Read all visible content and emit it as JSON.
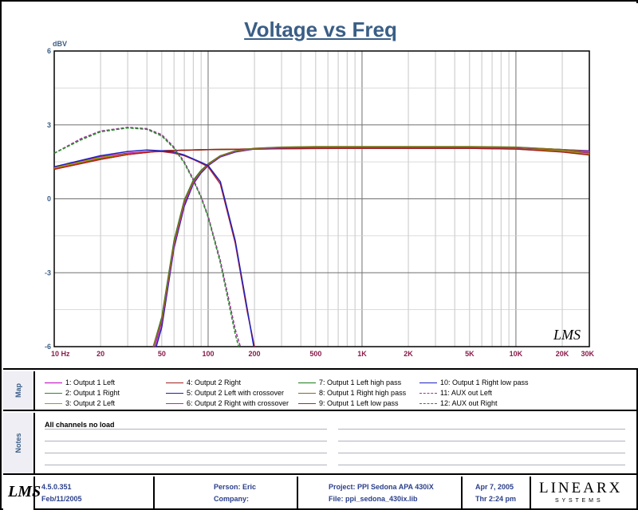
{
  "chart_data": {
    "type": "line",
    "title": "Voltage vs Freq",
    "ylabel": "dBV",
    "xscale": "log",
    "xlim": [
      10,
      30000
    ],
    "ylim": [
      -6,
      6
    ],
    "yticks": [
      6,
      3,
      0,
      -3,
      -6
    ],
    "xtick_labels": [
      {
        "value": 10,
        "label": "10  Hz"
      },
      {
        "value": 20,
        "label": "20"
      },
      {
        "value": 50,
        "label": "50"
      },
      {
        "value": 100,
        "label": "100"
      },
      {
        "value": 200,
        "label": "200"
      },
      {
        "value": 500,
        "label": "500"
      },
      {
        "value": 1000,
        "label": "1K"
      },
      {
        "value": 2000,
        "label": "2K"
      },
      {
        "value": 5000,
        "label": "5K"
      },
      {
        "value": 10000,
        "label": "10K"
      },
      {
        "value": 20000,
        "label": "20K"
      },
      {
        "value": 30000,
        "label": "30K"
      }
    ],
    "grid": true,
    "watermark": "LMS",
    "series": [
      {
        "name": "1: Output 1 Left",
        "color": "#c000c0",
        "dash": false,
        "x": [
          10,
          20,
          30,
          50,
          100,
          200,
          500,
          1000,
          2000,
          5000,
          10000,
          20000,
          30000
        ],
        "y": [
          1.3,
          1.7,
          1.85,
          1.95,
          2.0,
          2.02,
          2.04,
          2.05,
          2.05,
          2.05,
          2.05,
          1.95,
          1.85
        ]
      },
      {
        "name": "2: Output 1 Right",
        "color": "#2a8a2a",
        "dash": false,
        "x": [
          10,
          20,
          30,
          50,
          100,
          200,
          500,
          1000,
          2000,
          5000,
          10000,
          20000,
          30000
        ],
        "y": [
          1.2,
          1.65,
          1.8,
          1.95,
          2.0,
          2.02,
          2.05,
          2.05,
          2.05,
          2.05,
          2.02,
          1.92,
          1.8
        ]
      },
      {
        "name": "3: Output 2 Left",
        "color": "#a0a000",
        "dash": false,
        "x": [
          10,
          20,
          30,
          50,
          100,
          200,
          500,
          1000,
          2000,
          5000,
          10000,
          20000,
          30000
        ],
        "y": [
          1.25,
          1.68,
          1.82,
          1.95,
          2.0,
          2.02,
          2.05,
          2.05,
          2.05,
          2.05,
          2.03,
          1.94,
          1.82
        ]
      },
      {
        "name": "4: Output 2 Right",
        "color": "#a02020",
        "dash": false,
        "x": [
          10,
          20,
          30,
          50,
          100,
          200,
          500,
          1000,
          2000,
          5000,
          10000,
          20000,
          30000
        ],
        "y": [
          1.2,
          1.6,
          1.8,
          1.95,
          2.0,
          2.02,
          2.05,
          2.05,
          2.05,
          2.05,
          2.02,
          1.9,
          1.78
        ]
      },
      {
        "name": "5: Output 2 Left with crossover",
        "color": "#2020a0",
        "dash": false,
        "x": [
          46,
          50,
          60,
          70,
          80,
          90,
          100,
          120,
          150,
          200,
          300,
          500,
          1000,
          2000,
          5000,
          10000,
          20000,
          30000
        ],
        "y": [
          -6,
          -5.2,
          -2.0,
          -0.3,
          0.6,
          1.05,
          1.35,
          1.7,
          1.9,
          2.02,
          2.07,
          2.1,
          2.1,
          2.1,
          2.1,
          2.08,
          2.0,
          1.95
        ]
      },
      {
        "name": "6: Output 2 Right with crossover",
        "color": "#c020c0",
        "dash": false,
        "x": [
          45,
          50,
          60,
          70,
          80,
          90,
          100,
          120,
          150,
          200,
          300,
          500,
          1000,
          2000,
          5000,
          10000,
          20000,
          30000
        ],
        "y": [
          -6,
          -5.0,
          -1.9,
          -0.2,
          0.65,
          1.1,
          1.38,
          1.72,
          1.92,
          2.03,
          2.08,
          2.1,
          2.1,
          2.1,
          2.1,
          2.08,
          2.0,
          1.93
        ]
      },
      {
        "name": "7: Output 1 Left high pass",
        "color": "#1a7a1a",
        "dash": false,
        "x": [
          44,
          50,
          60,
          70,
          80,
          90,
          100,
          120,
          150,
          200,
          300,
          500,
          1000,
          2000,
          5000,
          10000,
          20000,
          30000
        ],
        "y": [
          -6,
          -4.8,
          -1.7,
          -0.05,
          0.75,
          1.15,
          1.42,
          1.75,
          1.95,
          2.05,
          2.1,
          2.12,
          2.12,
          2.12,
          2.12,
          2.1,
          2.0,
          1.9
        ]
      },
      {
        "name": "8: Output 1 Right high pass",
        "color": "#8a6a1a",
        "dash": false,
        "x": [
          44,
          50,
          60,
          70,
          80,
          90,
          100,
          120,
          150,
          200,
          300,
          500,
          1000,
          2000,
          5000,
          10000,
          20000,
          30000
        ],
        "y": [
          -6,
          -4.9,
          -1.8,
          -0.1,
          0.7,
          1.12,
          1.4,
          1.74,
          1.94,
          2.04,
          2.09,
          2.11,
          2.11,
          2.11,
          2.11,
          2.09,
          2.0,
          1.9
        ]
      },
      {
        "name": "9: Output 1 Left low pass",
        "color": "#c02020",
        "dash": false,
        "x": [
          10,
          20,
          30,
          40,
          50,
          60,
          70,
          80,
          90,
          100,
          120,
          150,
          180,
          200
        ],
        "y": [
          1.2,
          1.6,
          1.8,
          1.9,
          1.92,
          1.85,
          1.75,
          1.6,
          1.45,
          1.3,
          0.6,
          -1.8,
          -4.6,
          -6
        ]
      },
      {
        "name": "10: Output 1 Right low pass",
        "color": "#2020c0",
        "dash": false,
        "x": [
          10,
          20,
          30,
          40,
          50,
          60,
          70,
          80,
          90,
          100,
          120,
          150,
          180,
          198
        ],
        "y": [
          1.3,
          1.75,
          1.92,
          1.98,
          1.95,
          1.9,
          1.78,
          1.62,
          1.48,
          1.35,
          0.7,
          -1.7,
          -4.5,
          -6
        ]
      },
      {
        "name": "11: AUX out Left",
        "color": "#a030a0",
        "dash": true,
        "x": [
          10,
          15,
          20,
          30,
          40,
          50,
          60,
          70,
          80,
          90,
          100,
          120,
          150,
          162
        ],
        "y": [
          1.85,
          2.45,
          2.75,
          2.9,
          2.85,
          2.6,
          2.1,
          1.5,
          0.8,
          0.1,
          -0.7,
          -2.5,
          -5.3,
          -6
        ]
      },
      {
        "name": "12: AUX out Right",
        "color": "#2a8a2a",
        "dash": true,
        "x": [
          10,
          15,
          20,
          30,
          40,
          50,
          60,
          70,
          80,
          90,
          100,
          120,
          150,
          158
        ],
        "y": [
          1.85,
          2.4,
          2.72,
          2.88,
          2.82,
          2.55,
          2.05,
          1.45,
          0.75,
          0.05,
          -0.75,
          -2.6,
          -5.5,
          -6
        ]
      }
    ]
  },
  "map_label": "Map",
  "legend": [
    {
      "label": "1: Output 1 Left",
      "color": "#c000c0",
      "dash": false
    },
    {
      "label": "2: Output 1 Right",
      "color": "#2a8a2a",
      "dash": false
    },
    {
      "label": "3: Output 2 Left",
      "color": "#a0a000",
      "dash": false
    },
    {
      "label": "4: Output 2 Right",
      "color": "#a02020",
      "dash": false
    },
    {
      "label": "5: Output 2 Left with crossover",
      "color": "#2020a0",
      "dash": false
    },
    {
      "label": "6: Output 2 Right with crossover",
      "color": "#c020c0",
      "dash": false
    },
    {
      "label": "7: Output 1 Left high pass",
      "color": "#1a7a1a",
      "dash": false
    },
    {
      "label": "8: Output 1 Right high pass",
      "color": "#8a6a1a",
      "dash": false
    },
    {
      "label": "9: Output 1 Left low pass",
      "color": "#c02020",
      "dash": false
    },
    {
      "label": "10: Output 1 Right low pass",
      "color": "#2020c0",
      "dash": false
    },
    {
      "label": "11: AUX out Left",
      "color": "#a030a0",
      "dash": true
    },
    {
      "label": "12: AUX out Right",
      "color": "#2a8a2a",
      "dash": true
    }
  ],
  "notes_label": "Notes",
  "notes_text": "All channels no load",
  "footer": {
    "logo": "LMS",
    "version": "4.5.0.351",
    "build_date": "Feb/11/2005",
    "person": "Person: Eric",
    "company": "Company:",
    "project": "Project: PPI Sedona APA 430iX",
    "file": "File: ppi_sedona_430ix.lib",
    "date": "Apr  7, 2005",
    "time": "Thr  2:24 pm",
    "brand": "LINEARX",
    "brand_sub": "S Y S T E M S"
  }
}
